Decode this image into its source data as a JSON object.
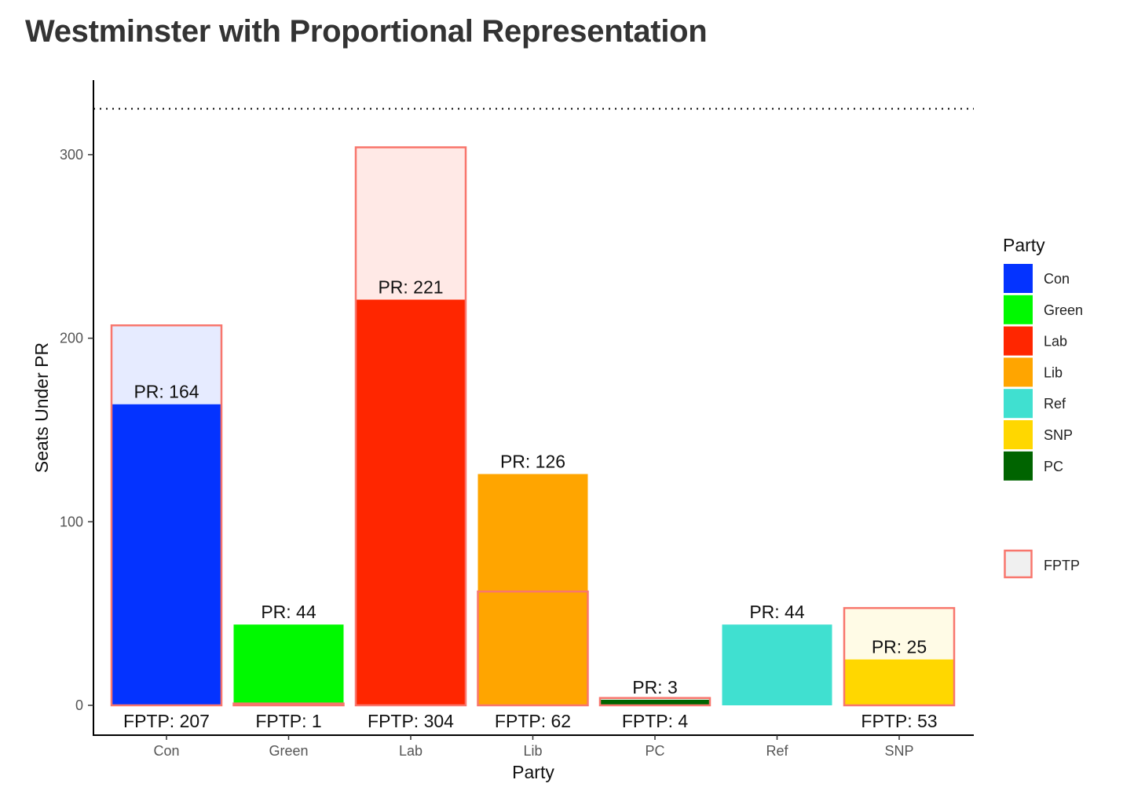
{
  "chart_data": {
    "type": "bar",
    "title": "Westminster with Proportional Representation",
    "xlabel": "Party",
    "ylabel": "Seats Under PR",
    "categories": [
      "Con",
      "Green",
      "Lab",
      "Lib",
      "PC",
      "Ref",
      "SNP"
    ],
    "series": [
      {
        "name": "FPTP",
        "values": [
          207,
          1,
          304,
          62,
          4,
          null,
          53
        ]
      },
      {
        "values": [
          164,
          44,
          221,
          126,
          3,
          44,
          25
        ]
      }
    ],
    "pr_labels": [
      "PR: 164",
      "PR: 44",
      "PR: 221",
      "PR: 126",
      "PR: 3",
      "PR: 44",
      "PR: 25"
    ],
    "fptp_labels": [
      "FPTP: 207",
      "FPTP: 1",
      "FPTP: 304",
      "FPTP: 62",
      "FPTP: 4",
      "",
      "FPTP: 53"
    ],
    "yticks": [
      0,
      100,
      200,
      300
    ],
    "ylim": [
      0,
      325
    ],
    "reference_line": 325,
    "grid": false,
    "legend": {
      "title": "Party",
      "placement": "right",
      "items": [
        {
          "label": "Con",
          "color": "#0433ff"
        },
        {
          "label": "Green",
          "color": "#00f900"
        },
        {
          "label": "Lab",
          "color": "#ff2600"
        },
        {
          "label": "Lib",
          "color": "#ffa500"
        },
        {
          "label": "Ref",
          "color": "#40e0d0"
        },
        {
          "label": "SNP",
          "color": "#ffd700"
        },
        {
          "label": "PC",
          "color": "#006400"
        }
      ],
      "fptp_label": "FPTP"
    },
    "party_colors": {
      "Con": "#0433ff",
      "Green": "#00f900",
      "Lab": "#ff2600",
      "Lib": "#ffa500",
      "PC": "#006400",
      "Ref": "#40e0d0",
      "SNP": "#ffd700"
    },
    "fptp_outline_color": "#f8766d"
  }
}
